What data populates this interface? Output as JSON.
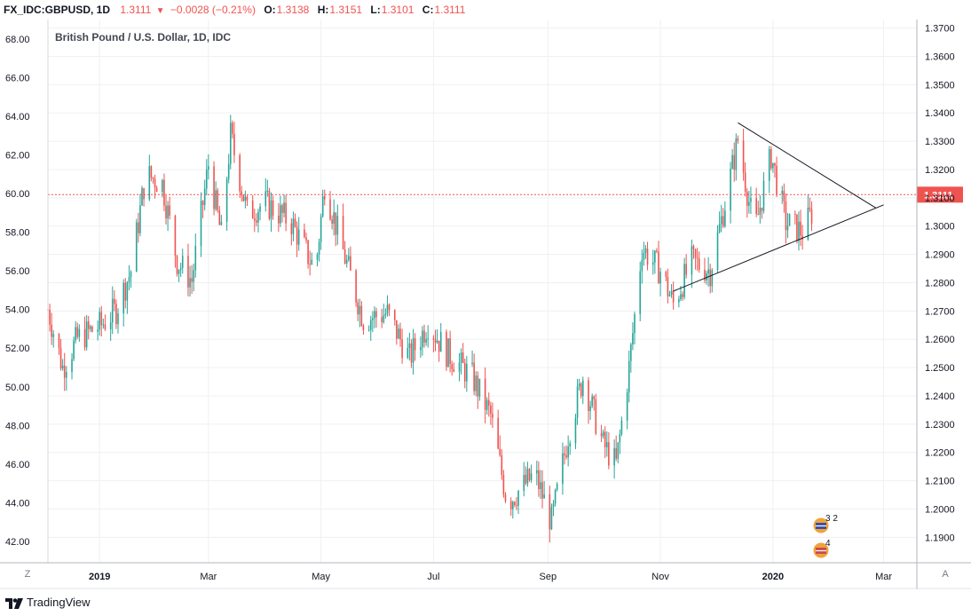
{
  "header": {
    "symbol": "FX_IDC:GBPUSD, 1D",
    "last": "1.3111",
    "arrow_icon": "triangle-down-icon",
    "change": "−0.0028 (−0.21%)",
    "open_label": "O:",
    "open": "1.3138",
    "high_label": "H:",
    "high": "1.3151",
    "low_label": "L:",
    "low": "1.3101",
    "close_label": "C:",
    "close": "1.3111"
  },
  "footer": {
    "brand": "TradingView",
    "zoom_button": "Z",
    "auto_button": "A"
  },
  "colors": {
    "up": "#26a69a",
    "down": "#ef5350",
    "grid": "#eef0f3",
    "price_line": "#ef5350",
    "trendline": "#131722"
  },
  "events": [
    {
      "label": "3 2",
      "icon": "uk-flag-icon"
    },
    {
      "label": "4",
      "icon": "us-flag-icon"
    }
  ],
  "chart_data": {
    "type": "candlestick",
    "title": "British Pound / U.S. Dollar, 1D, IDC",
    "grid": true,
    "current_price": 1.3111,
    "current_price_label": "1.3111",
    "right_axis": {
      "min": 1.181,
      "max": 1.373,
      "ticks": [
        "1.1900",
        "1.2000",
        "1.2100",
        "1.2200",
        "1.2300",
        "1.2400",
        "1.2500",
        "1.2600",
        "1.2700",
        "1.2800",
        "1.2900",
        "1.3000",
        "1.3100",
        "1.3200",
        "1.3300",
        "1.3400",
        "1.3500",
        "1.3600",
        "1.3700"
      ]
    },
    "left_axis": {
      "min": 40.9,
      "max": 69.0,
      "ticks": [
        "42.00",
        "44.00",
        "46.00",
        "48.00",
        "50.00",
        "52.00",
        "54.00",
        "56.00",
        "58.00",
        "60.00",
        "62.00",
        "64.00",
        "66.00",
        "68.00"
      ]
    },
    "x_axis": {
      "start": "2018-12-04",
      "end": "2020-03-19",
      "ticks": [
        {
          "date": "2019-01-01",
          "label": "2019",
          "bold": true
        },
        {
          "date": "2019-03-01",
          "label": "Mar",
          "bold": false
        },
        {
          "date": "2019-05-01",
          "label": "May",
          "bold": false
        },
        {
          "date": "2019-07-01",
          "label": "Jul",
          "bold": false
        },
        {
          "date": "2019-09-01",
          "label": "Sep",
          "bold": false
        },
        {
          "date": "2019-11-01",
          "label": "Nov",
          "bold": false
        },
        {
          "date": "2020-01-01",
          "label": "2020",
          "bold": true
        },
        {
          "date": "2020-03-01",
          "label": "Mar",
          "bold": false
        }
      ]
    },
    "price_path": [
      [
        "2018-12-04",
        54.0
      ],
      [
        "2018-12-12",
        51.0
      ],
      [
        "2018-12-20",
        52.5
      ],
      [
        "2019-01-02",
        53.2
      ],
      [
        "2019-01-10",
        54.0
      ],
      [
        "2019-01-18",
        56.0
      ],
      [
        "2019-01-26",
        61.0
      ],
      [
        "2019-02-04",
        60.5
      ],
      [
        "2019-02-12",
        56.5
      ],
      [
        "2019-02-20",
        55.5
      ],
      [
        "2019-03-01",
        61.5
      ],
      [
        "2019-03-08",
        57.8
      ],
      [
        "2019-03-13",
        63.0
      ],
      [
        "2019-03-22",
        59.0
      ],
      [
        "2019-04-01",
        59.5
      ],
      [
        "2019-04-15",
        58.5
      ],
      [
        "2019-04-28",
        56.0
      ],
      [
        "2019-05-03",
        60.5
      ],
      [
        "2019-05-13",
        57.0
      ],
      [
        "2019-05-24",
        53.5
      ],
      [
        "2019-06-06",
        53.8
      ],
      [
        "2019-06-18",
        51.5
      ],
      [
        "2019-06-28",
        53.3
      ],
      [
        "2019-07-08",
        51.8
      ],
      [
        "2019-07-22",
        50.5
      ],
      [
        "2019-08-01",
        48.5
      ],
      [
        "2019-08-10",
        44.0
      ],
      [
        "2019-08-25",
        45.5
      ],
      [
        "2019-09-03",
        43.0
      ],
      [
        "2019-09-12",
        47.5
      ],
      [
        "2019-09-20",
        50.5
      ],
      [
        "2019-10-01",
        47.0
      ],
      [
        "2019-10-08",
        46.0
      ],
      [
        "2019-10-15",
        51.0
      ],
      [
        "2019-10-22",
        57.2
      ],
      [
        "2019-11-01",
        56.0
      ],
      [
        "2019-11-08",
        54.3
      ],
      [
        "2019-11-18",
        56.5
      ],
      [
        "2019-11-28",
        56.0
      ],
      [
        "2019-12-06",
        59.5
      ],
      [
        "2019-12-13",
        62.8
      ],
      [
        "2019-12-22",
        58.0
      ],
      [
        "2019-12-31",
        62.0
      ],
      [
        "2020-01-08",
        58.5
      ],
      [
        "2020-01-17",
        58.0
      ],
      [
        "2020-01-22",
        59.0
      ]
    ],
    "trendlines": [
      {
        "start": [
          "2019-12-13",
          1.3365
        ],
        "end": [
          "2020-02-26",
          1.3063
        ]
      },
      {
        "start": [
          "2019-11-08",
          1.277
        ],
        "end": [
          "2020-03-01",
          1.3075
        ]
      }
    ]
  }
}
